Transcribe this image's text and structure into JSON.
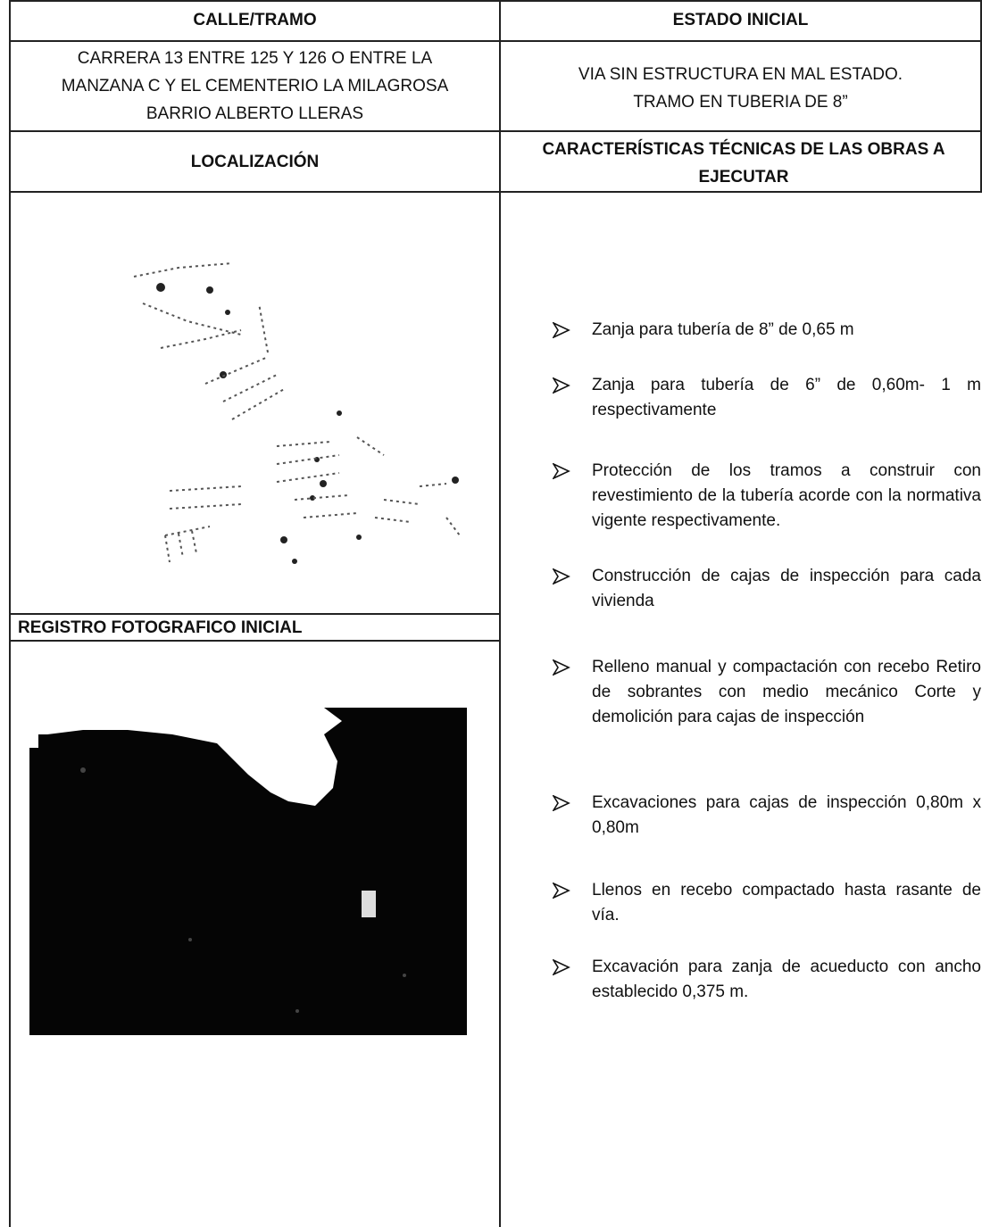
{
  "table": {
    "headers": [
      "CALLE/TRAMO",
      "ESTADO INICIAL"
    ],
    "location_lines": [
      "CARRERA 13 ENTRE 125 Y 126 O ENTRE LA",
      "MANZANA C Y EL CEMENTERIO LA MILAGROSA",
      "BARRIO ALBERTO LLERAS"
    ],
    "state_lines": [
      "VIA SIN ESTRUCTURA EN MAL ESTADO.",
      "TRAMO EN TUBERIA DE 8”"
    ],
    "section_headers": [
      "LOCALIZACIÓN",
      "CARACTERÍSTICAS TÉCNICAS DE LAS OBRAS A EJECUTAR"
    ],
    "photo_header": "REGISTRO FOTOGRAFICO INICIAL",
    "items": [
      "Zanja para tubería de 8” de 0,65 m",
      "Zanja para tubería de 6” de 0,60m- 1 m respectivamente",
      "Protección de los tramos a construir con revestimiento de la tubería acorde con la normativa vigente respectivamente.",
      "Construcción de cajas de inspección para cada vivienda",
      "Relleno manual y compactación con recebo Retiro de sobrantes con medio mecánico Corte y demolición para cajas de inspección",
      "Excavaciones para cajas de inspección 0,80m x 0,80m",
      "Llenos en recebo compactado hasta rasante de vía.",
      "Excavación para zanja de acueducto con ancho establecido 0,375 m."
    ]
  }
}
